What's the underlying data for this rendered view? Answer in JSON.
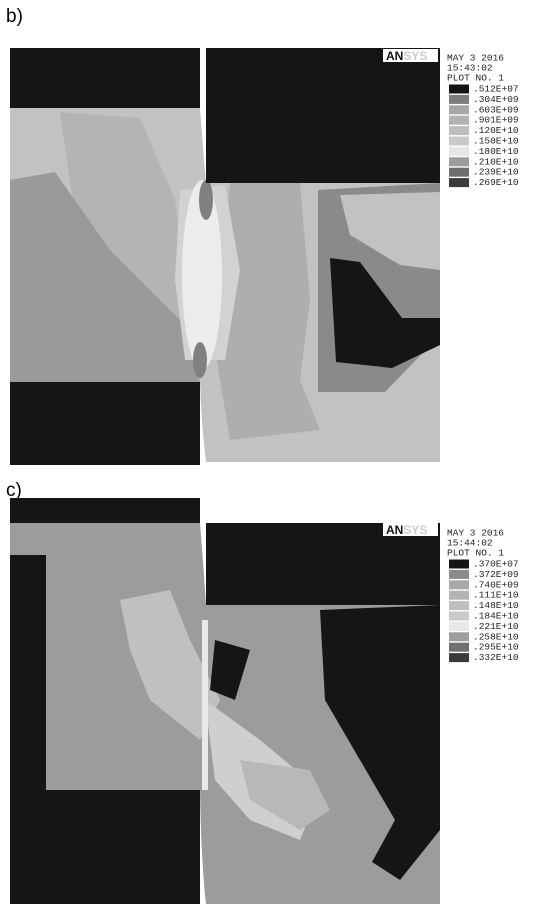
{
  "panels": [
    {
      "label": "b)",
      "logo_main": "AN",
      "logo_faint": "SYS",
      "date": "MAY  3 2016",
      "time": "15:43:02",
      "plot_no": "PLOT NO.   1",
      "legend": [
        {
          "label": ".512E+07",
          "color": "#141414"
        },
        {
          "label": ".304E+09",
          "color": "#7c7c7c"
        },
        {
          "label": ".603E+09",
          "color": "#a6a6a6"
        },
        {
          "label": ".901E+09",
          "color": "#b2b2b2"
        },
        {
          "label": ".120E+10",
          "color": "#bdbdbd"
        },
        {
          "label": ".150E+10",
          "color": "#c9c9c9"
        },
        {
          "label": ".180E+10",
          "color": "#e6e6e6"
        },
        {
          "label": ".210E+10",
          "color": "#9c9c9c"
        },
        {
          "label": ".239E+10",
          "color": "#6e6e6e"
        },
        {
          "label": ".269E+10",
          "color": "#3a3a3a"
        }
      ]
    },
    {
      "label": "c)",
      "logo_main": "AN",
      "logo_faint": "SYS",
      "date": "MAY  3 2016",
      "time": "15:44:02",
      "plot_no": "PLOT NO.   1",
      "legend": [
        {
          "label": ".370E+07",
          "color": "#141414"
        },
        {
          "label": ".372E+09",
          "color": "#8a8a8a"
        },
        {
          "label": ".740E+09",
          "color": "#a8a8a8"
        },
        {
          "label": ".111E+10",
          "color": "#b4b4b4"
        },
        {
          "label": ".148E+10",
          "color": "#bfbfbf"
        },
        {
          "label": ".184E+10",
          "color": "#cacaca"
        },
        {
          "label": ".221E+10",
          "color": "#e8e8e8"
        },
        {
          "label": ".258E+10",
          "color": "#9e9e9e"
        },
        {
          "label": ".295E+10",
          "color": "#707070"
        },
        {
          "label": ".332E+10",
          "color": "#3a3a3a"
        }
      ]
    }
  ]
}
